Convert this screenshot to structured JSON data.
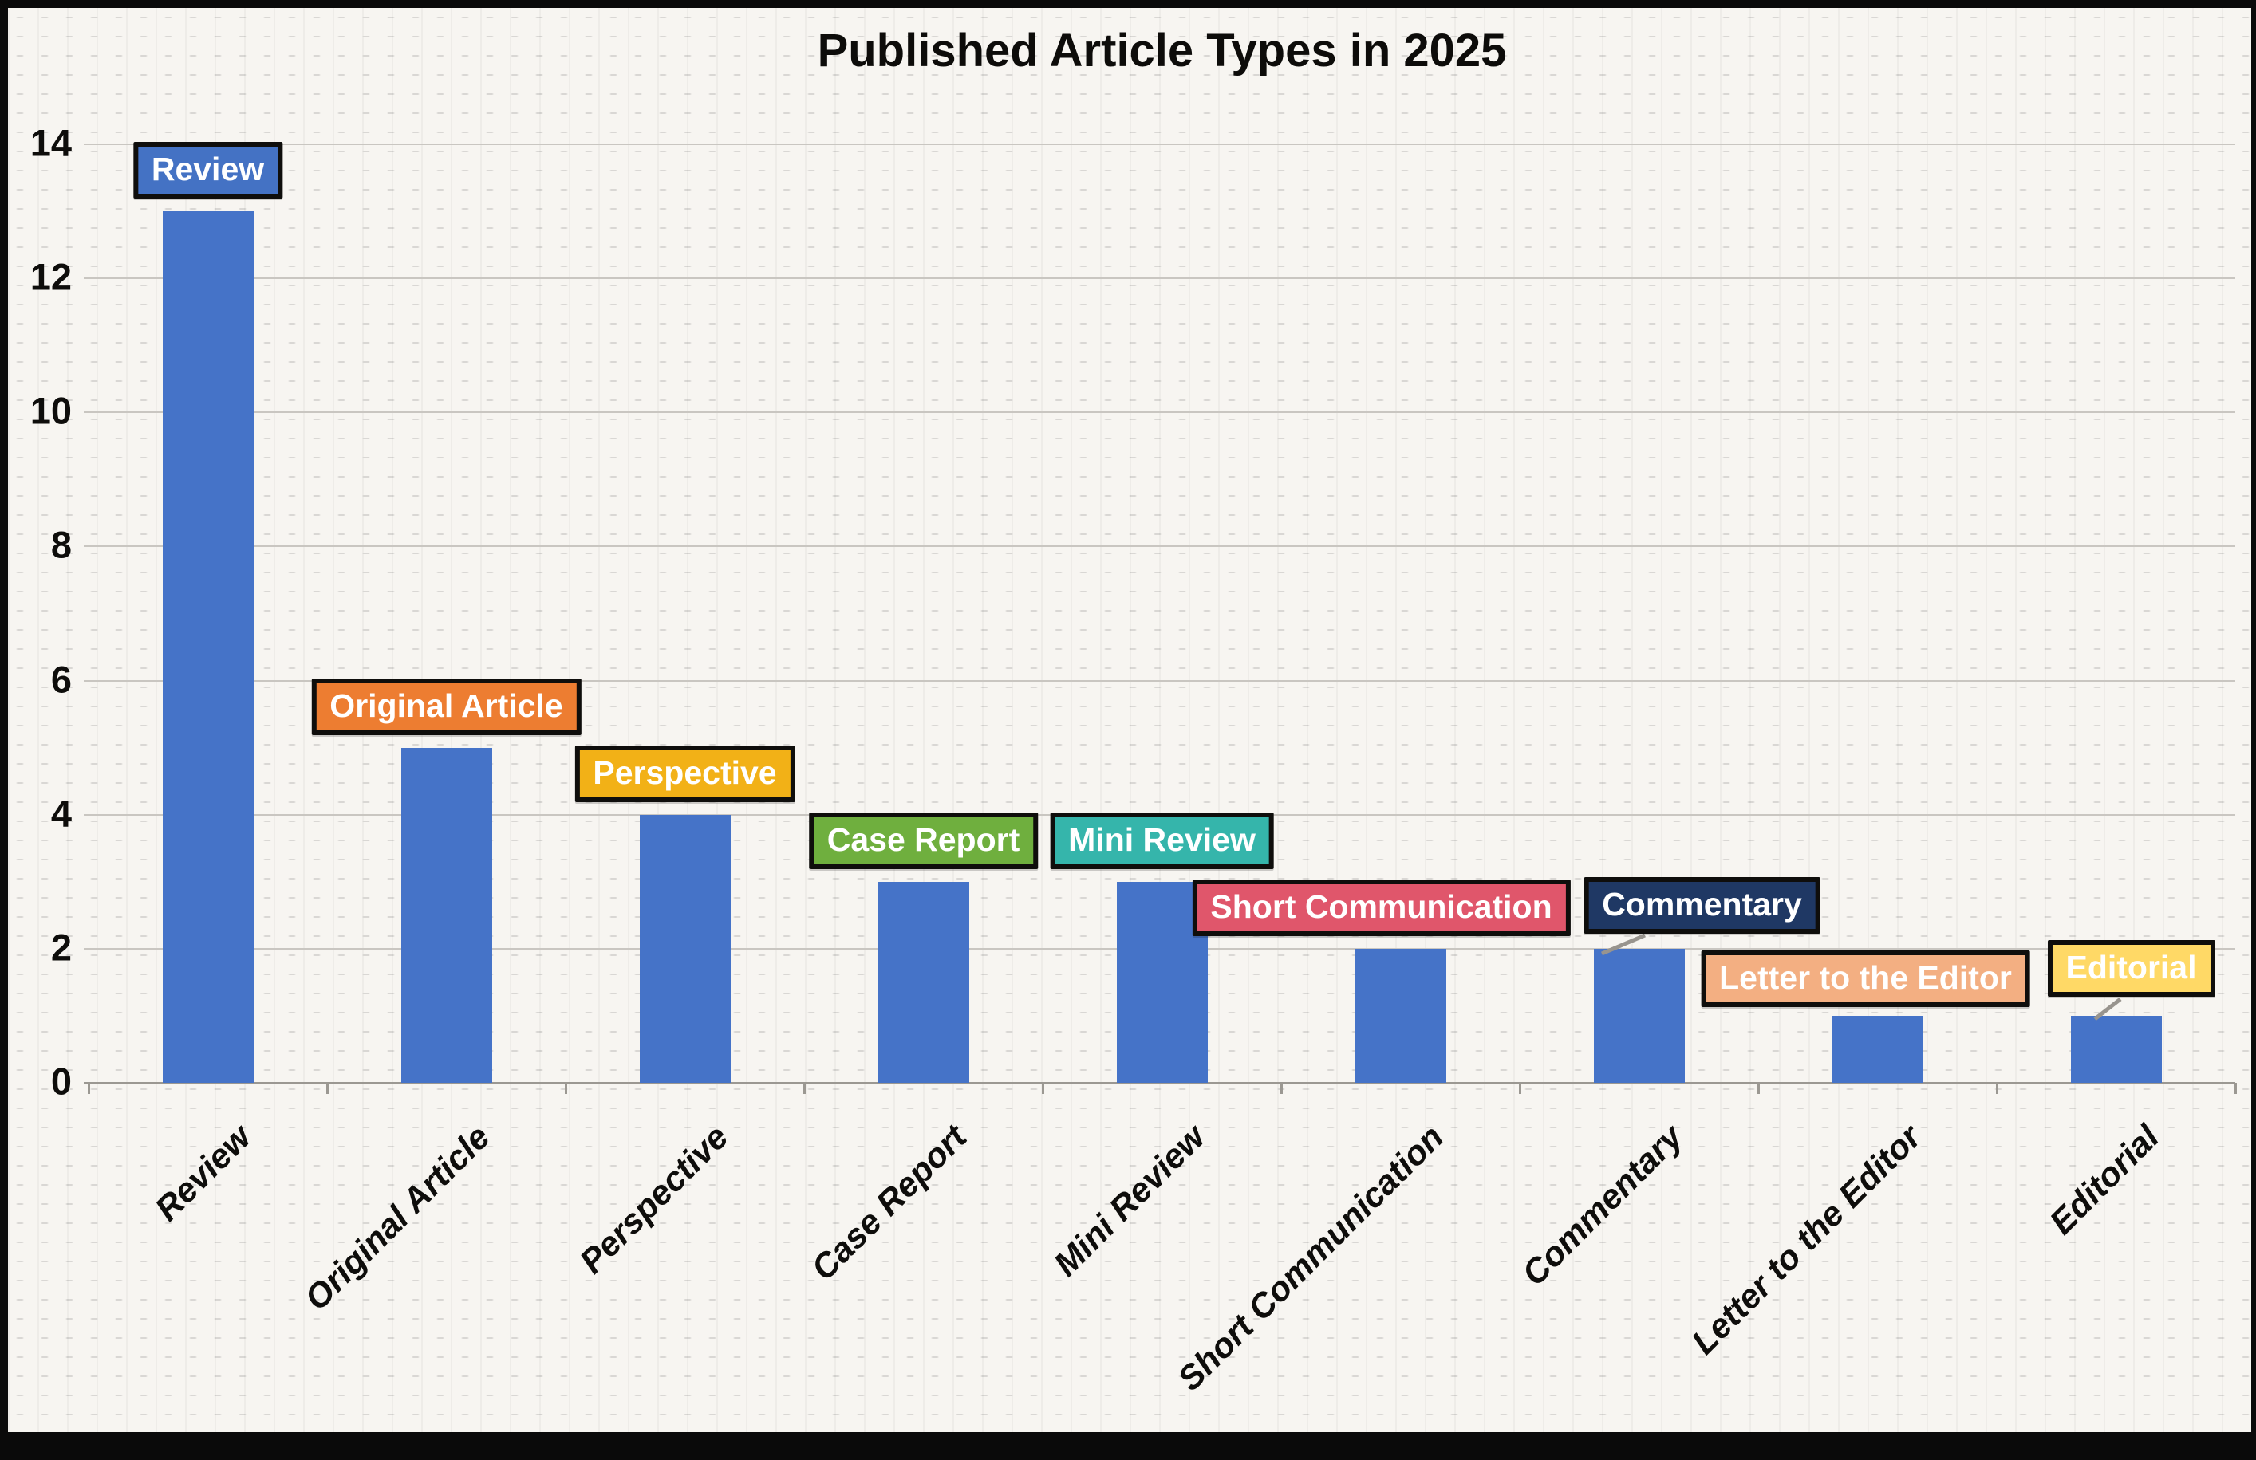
{
  "title": "Published Article Types in 2025",
  "chart_data": {
    "type": "bar",
    "title": "Published Article Types in 2025",
    "categories": [
      "Review",
      "Original Article",
      "Perspective",
      "Case Report",
      "Mini Review",
      "Short Communication",
      "Commentary",
      "Letter to the Editor",
      "Editorial"
    ],
    "values": [
      13,
      5,
      4,
      3,
      3,
      2,
      2,
      1,
      1
    ],
    "xlabel": "",
    "ylabel": "",
    "ylim": [
      0,
      14
    ],
    "yticks": [
      0,
      2,
      4,
      6,
      8,
      10,
      12,
      14
    ],
    "grid": true,
    "legend_position": "none",
    "bar_color": "#4573C8",
    "callouts": [
      {
        "label": "Review",
        "fill": "#4472C4",
        "text_color": "#ffffff",
        "leader": false
      },
      {
        "label": "Original Article",
        "fill": "#ED7D31",
        "text_color": "#ffffff",
        "leader": false
      },
      {
        "label": "Perspective",
        "fill": "#F2B117",
        "text_color": "#ffffff",
        "leader": false
      },
      {
        "label": "Case Report",
        "fill": "#6FAF3E",
        "text_color": "#ffffff",
        "leader": false
      },
      {
        "label": "Mini Review",
        "fill": "#35B5AB",
        "text_color": "#ffffff",
        "leader": false
      },
      {
        "label": "Short Communication",
        "fill": "#E0566B",
        "text_color": "#ffffff",
        "leader": false
      },
      {
        "label": "Commentary",
        "fill": "#1F3864",
        "text_color": "#ffffff",
        "leader": true
      },
      {
        "label": "Letter to the Editor",
        "fill": "#F3AF82",
        "text_color": "#ffffff",
        "leader": false
      },
      {
        "label": "Editorial",
        "fill": "#FFD966",
        "text_color": "#ffffff",
        "leader": true
      }
    ]
  },
  "colors": {
    "frame": "#0a0a0a",
    "plot_background": "#f7f5f1",
    "gridline": "#c9c6c1",
    "axis": "#9b9892",
    "text": "#0e0d0b",
    "leader_line": "#98948e"
  }
}
